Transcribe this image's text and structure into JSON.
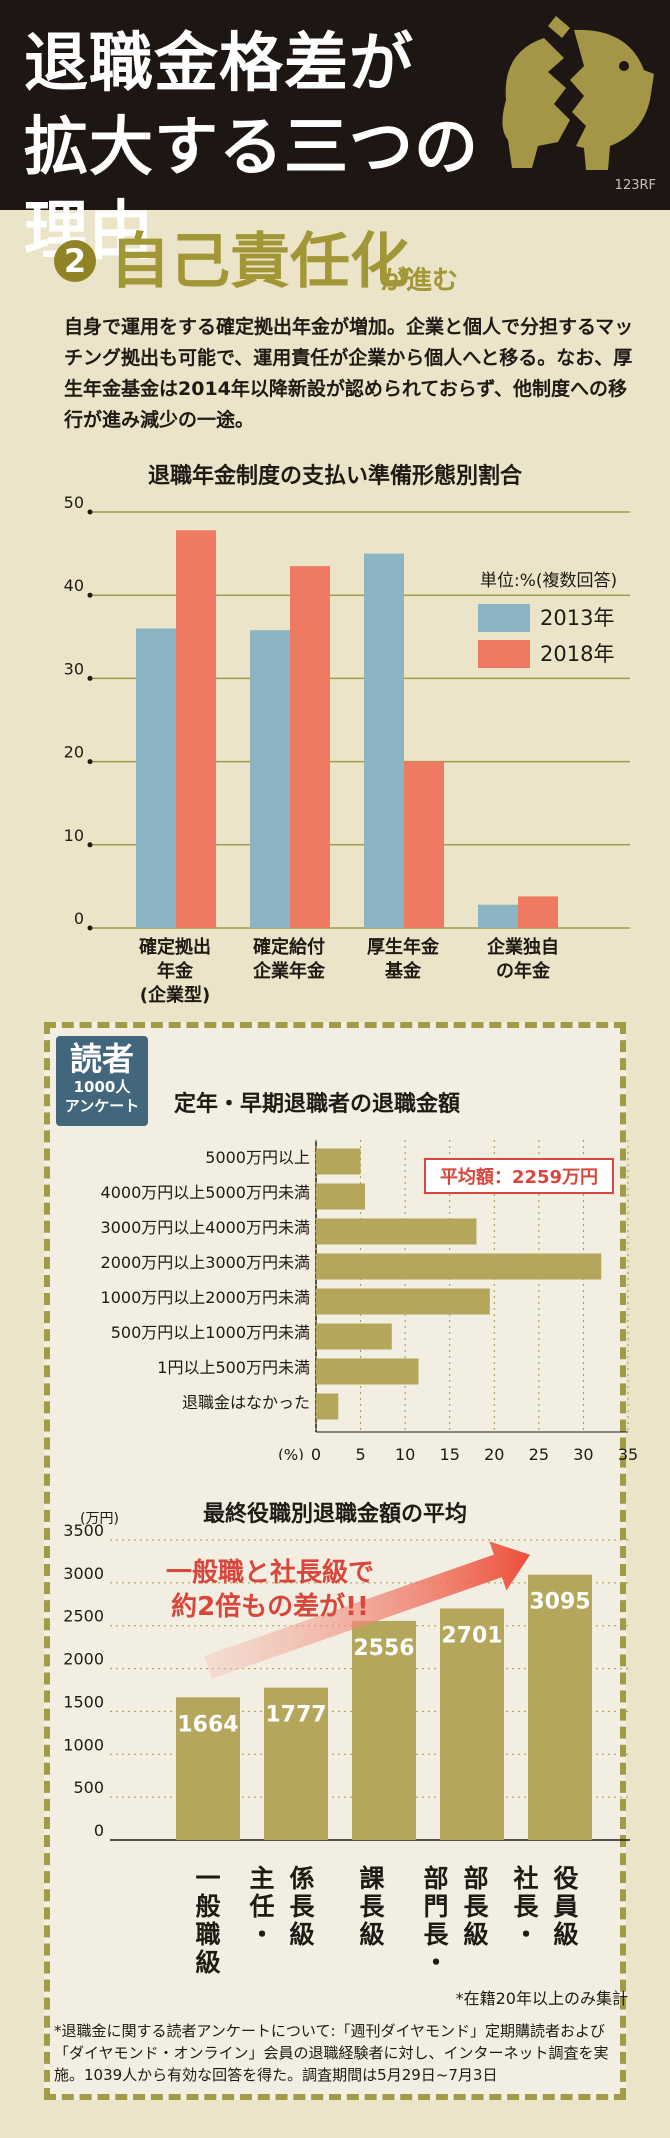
{
  "header": {
    "title": "退職金格差が\n拡大する三つの理由",
    "credit": "123RF"
  },
  "section": {
    "number": "2",
    "title": "自己責任化",
    "subtitle": "が進む",
    "text": "自身で運用をする確定拠出年金が増加。企業と個人で分担するマッチング拠出も可能で、運用責任が企業から個人へと移る。なお、厚生年金基金は2014年以降新設が認められておらず、他制度への移行が進み減少の一途。"
  },
  "chart_data": [
    {
      "type": "bar",
      "title": "退職年金制度の支払い準備形態別割合",
      "unit_note": "単位:%(複数回答)",
      "categories": [
        "確定拠出\n年金\n(企業型)",
        "確定給付\n企業年金",
        "厚生年金\n基金",
        "企業独自\nの年金"
      ],
      "series": [
        {
          "name": "2013年",
          "values": [
            36,
            35.8,
            45,
            2.8
          ],
          "color": "#8cb5c3"
        },
        {
          "name": "2018年",
          "values": [
            47.8,
            43.5,
            20,
            3.8
          ],
          "color": "#ef7a62"
        }
      ],
      "yticks": [
        "50",
        "40",
        "30",
        "20",
        "10",
        "0"
      ],
      "ylim": [
        0,
        50
      ],
      "grid": true,
      "legend_position": "right"
    },
    {
      "type": "bar",
      "orientation": "horizontal",
      "badge": {
        "main": "読者",
        "sub": "1000人\nアンケート"
      },
      "title": "定年・早期退職者の退職金額",
      "categories": [
        "5000万円以上",
        "4000万円以上5000万円未満",
        "3000万円以上4000万円未満",
        "2000万円以上3000万円未満",
        "1000万円以上2000万円未満",
        "500万円以上1000万円未満",
        "1円以上500万円未満",
        "退職金はなかった"
      ],
      "values": [
        5,
        5.5,
        18,
        32,
        19.5,
        8.5,
        11.5,
        2.5
      ],
      "xunit": "(%)",
      "xticks": [
        "0",
        "5",
        "10",
        "15",
        "20",
        "25",
        "30",
        "35"
      ],
      "xlim": [
        0,
        35
      ],
      "annotation": "平均額：2259万円",
      "color": "#b4a65b"
    },
    {
      "type": "bar",
      "title": "最終役職別退職金額の平均",
      "yunit": "(万円)",
      "categories": [
        "一般職級",
        "係長級\n主任・",
        "課長級",
        "部長級\n部門長・",
        "役員級\n社長・"
      ],
      "values": [
        1664,
        1777,
        2556,
        2701,
        3095
      ],
      "value_labels": [
        "1664",
        "1777",
        "2556",
        "2701",
        "3095"
      ],
      "yticks": [
        "3500",
        "3000",
        "2500",
        "2000",
        "1500",
        "1000",
        "500",
        "0"
      ],
      "ylim": [
        0,
        3500
      ],
      "callout": "一般職と社長級で\n約2倍もの差が!!",
      "note": "*在籍20年以上のみ集計",
      "color": "#b4a65b"
    }
  ],
  "footnote": "*退職金に関する読者アンケートについて:「週刊ダイヤモンド」定期購読者および「ダイヤモンド・オンライン」会員の退職経験者に対し、インターネット調査を実施。1039人から有効な回答を得た。調査期間は5月29日~7月3日"
}
